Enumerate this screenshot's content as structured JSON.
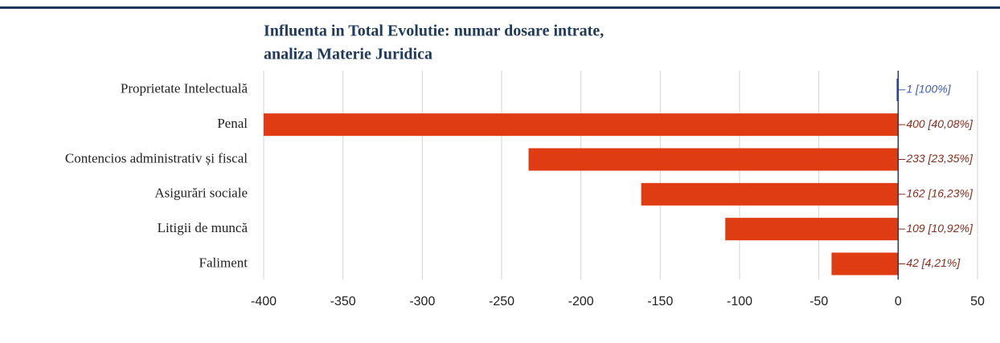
{
  "chart_data": {
    "type": "bar",
    "orientation": "horizontal",
    "title": [
      "Influenta in Total Evolutie: numar dosare intrate,",
      "analiza Materie Juridica"
    ],
    "categories": [
      "Proprietate Intelectuală",
      "Penal",
      "Contencios administrativ și fiscal",
      "Asigurări sociale",
      "Litigii de muncă",
      "Faliment"
    ],
    "values": [
      -1,
      -400,
      -233,
      -162,
      -109,
      -42
    ],
    "value_labels": [
      "1 [100%]",
      "400 [40,08%]",
      "233 [23,35%]",
      "162 [16,23%]",
      "109 [10,92%]",
      "42 [4,21%]"
    ],
    "colors": [
      "#3b5bc4",
      "#e03c14",
      "#e03c14",
      "#e03c14",
      "#e03c14",
      "#e03c14"
    ],
    "label_colors": [
      "#3b5bc4",
      "#8a2d1c",
      "#8a2d1c",
      "#8a2d1c",
      "#8a2d1c",
      "#8a2d1c"
    ],
    "xlim": [
      -400,
      50
    ],
    "xticks": [
      -400,
      -350,
      -300,
      -250,
      -200,
      -150,
      -100,
      -50,
      0,
      50
    ],
    "grid": true
  }
}
